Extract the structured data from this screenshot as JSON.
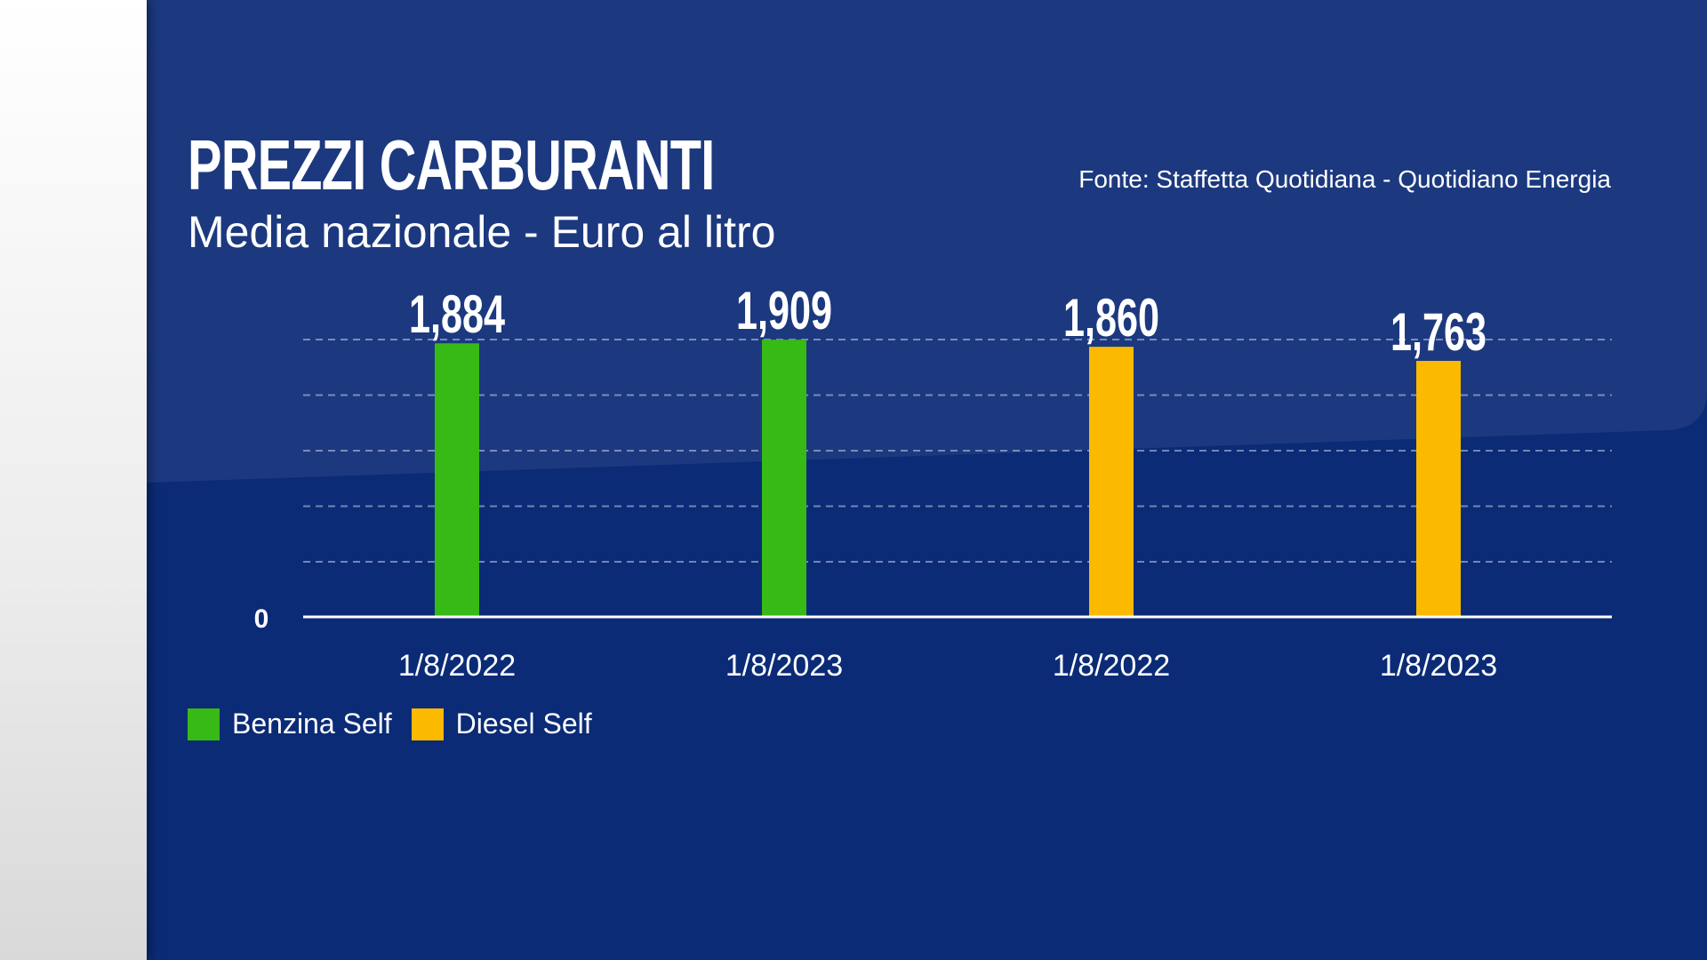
{
  "chart_data": {
    "type": "bar",
    "title": "PREZZI CARBURANTI",
    "subtitle": "Media nazionale - Euro al litro",
    "source": "Fonte: Staffetta Quotidiana - Quotidiano Energia",
    "categories": [
      "1/8/2022",
      "1/8/2023",
      "1/8/2022",
      "1/8/2023"
    ],
    "values": [
      1.884,
      1.909,
      1.86,
      1.763
    ],
    "value_labels": [
      "1,884",
      "1,909",
      "1,860",
      "1,763"
    ],
    "series_of_bar": [
      "Benzina Self",
      "Benzina Self",
      "Diesel Self",
      "Diesel Self"
    ],
    "legend": [
      {
        "name": "Benzina Self",
        "color": "#37b916"
      },
      {
        "name": "Diesel Self",
        "color": "#fbb900"
      }
    ],
    "y_tick_label": "0",
    "ylim": [
      0,
      1.91
    ],
    "grid": true,
    "legend_placement": "bottom-left",
    "xlabel": "",
    "ylabel": ""
  }
}
